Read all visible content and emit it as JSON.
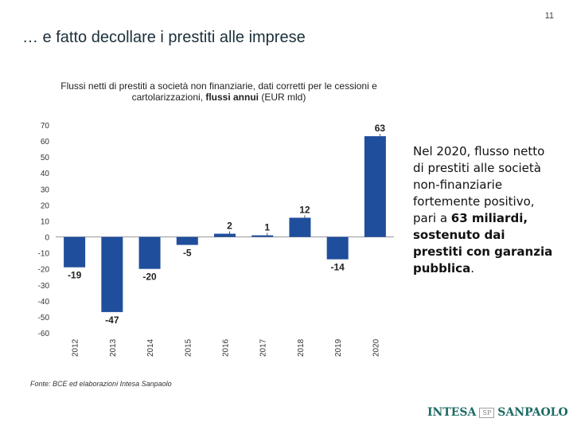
{
  "page": {
    "number": "11",
    "title": "… e fatto decollare i prestiti alle imprese"
  },
  "chart_data": {
    "type": "bar",
    "title_part1": "Flussi netti di prestiti a società non finanziarie, dati corretti per le cessioni e cartolarizzazioni, ",
    "title_part2": "flussi annui",
    "title_part3": " (EUR mld)",
    "categories": [
      "2012",
      "2013",
      "2014",
      "2015",
      "2016",
      "2017",
      "2018",
      "2019",
      "2020"
    ],
    "values": [
      -19,
      -47,
      -20,
      -5,
      2,
      1,
      12,
      -14,
      63
    ],
    "labels": [
      "-19",
      "-47",
      "-20",
      "-5",
      "2",
      "1",
      "12",
      "-14",
      "63"
    ],
    "ylim": [
      -60,
      70
    ],
    "yticks": [
      "70",
      "60",
      "50",
      "40",
      "30",
      "20",
      "10",
      "0",
      "-10",
      "-20",
      "-30",
      "-40",
      "-50",
      "-60"
    ],
    "ytick_values": [
      70,
      60,
      50,
      40,
      30,
      20,
      10,
      0,
      -10,
      -20,
      -30,
      -40,
      -50,
      -60
    ],
    "grid": false,
    "bar_color": "#1f4e9c"
  },
  "note": {
    "part1": "Nel 2020, flusso netto di prestiti alle società non-finanziarie fortemente positivo, pari a ",
    "part2": "63 miliardi, sostenuto dai prestiti con garanzia pubblica",
    "part3": "."
  },
  "source": "Fonte: BCE ed elaborazioni Intesa Sanpaolo",
  "logo": {
    "left": "INTESA",
    "mid": "SP",
    "right": "SANPAOLO"
  }
}
